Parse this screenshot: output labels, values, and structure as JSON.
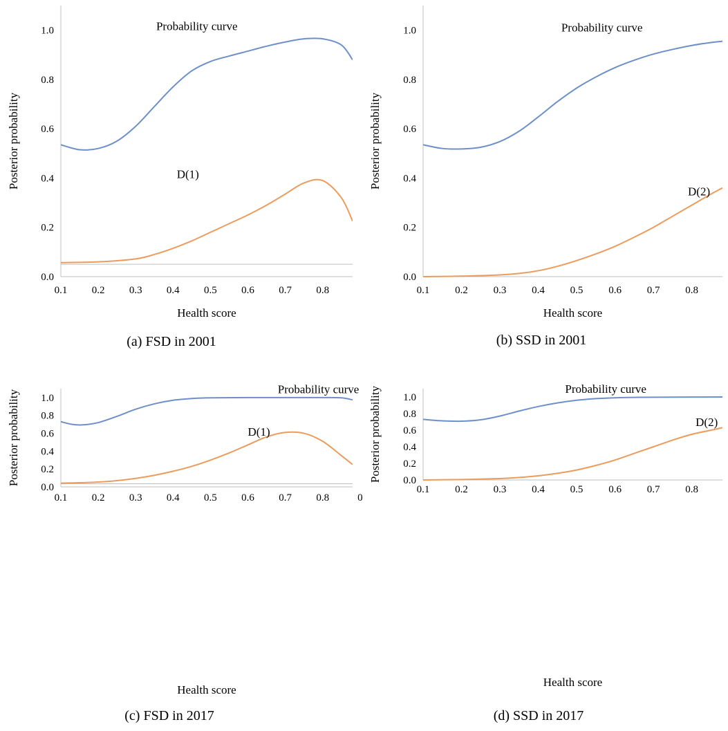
{
  "chart_data": [
    {
      "type": "line",
      "caption": "(a) FSD in 2001",
      "xlabel": "Health score",
      "ylabel": "Posterior probability",
      "xlim": [
        0.1,
        0.88
      ],
      "ylim": [
        0,
        1.1
      ],
      "xticks": [
        "0.1",
        "0.2",
        "0.3",
        "0.4",
        "0.5",
        "0.6",
        "0.7",
        "0.8"
      ],
      "yticks": [
        "0.0",
        "0.2",
        "0.4",
        "0.6",
        "0.8",
        "1.0"
      ],
      "series": [
        {
          "name": "Probability curve",
          "color": "#6d8fc9",
          "x": [
            0.1,
            0.15,
            0.2,
            0.25,
            0.3,
            0.35,
            0.4,
            0.45,
            0.5,
            0.55,
            0.6,
            0.65,
            0.7,
            0.75,
            0.8,
            0.85,
            0.88
          ],
          "y": [
            0.535,
            0.515,
            0.52,
            0.55,
            0.61,
            0.69,
            0.77,
            0.835,
            0.873,
            0.895,
            0.915,
            0.935,
            0.952,
            0.965,
            0.965,
            0.94,
            0.88
          ]
        },
        {
          "name": "D(1)",
          "color": "#ed9b5c",
          "x": [
            0.1,
            0.2,
            0.3,
            0.35,
            0.4,
            0.45,
            0.5,
            0.55,
            0.6,
            0.65,
            0.7,
            0.75,
            0.8,
            0.85,
            0.88
          ],
          "y": [
            0.057,
            0.06,
            0.072,
            0.09,
            0.115,
            0.145,
            0.18,
            0.215,
            0.25,
            0.29,
            0.335,
            0.38,
            0.39,
            0.32,
            0.225
          ]
        }
      ],
      "hline": {
        "y": 0.05,
        "color": "#bfbfbf"
      },
      "annotations": [
        {
          "text": "Probability curve",
          "x": 0.355,
          "y": 1.0
        },
        {
          "text": "D(1)",
          "x": 0.41,
          "y": 0.4
        }
      ]
    },
    {
      "type": "line",
      "caption": "(b) SSD in 2001",
      "xlabel": "Health score",
      "ylabel": "Posterior probability",
      "xlim": [
        0.1,
        0.88
      ],
      "ylim": [
        0,
        1.1
      ],
      "xticks": [
        "0.1",
        "0.2",
        "0.3",
        "0.4",
        "0.5",
        "0.6",
        "0.7",
        "0.8"
      ],
      "yticks": [
        "0.0",
        "0.2",
        "0.4",
        "0.6",
        "0.8",
        "1.0"
      ],
      "series": [
        {
          "name": "Probability curve",
          "color": "#6d8fc9",
          "x": [
            0.1,
            0.15,
            0.2,
            0.25,
            0.3,
            0.35,
            0.4,
            0.45,
            0.5,
            0.55,
            0.6,
            0.65,
            0.7,
            0.75,
            0.8,
            0.85,
            0.88
          ],
          "y": [
            0.535,
            0.52,
            0.518,
            0.525,
            0.548,
            0.59,
            0.648,
            0.71,
            0.765,
            0.81,
            0.848,
            0.878,
            0.903,
            0.922,
            0.938,
            0.95,
            0.955
          ]
        },
        {
          "name": "D(2)",
          "color": "#ed9b5c",
          "x": [
            0.1,
            0.2,
            0.3,
            0.35,
            0.4,
            0.45,
            0.5,
            0.55,
            0.6,
            0.65,
            0.7,
            0.75,
            0.8,
            0.85,
            0.88
          ],
          "y": [
            0.0,
            0.002,
            0.007,
            0.013,
            0.024,
            0.042,
            0.065,
            0.092,
            0.123,
            0.16,
            0.2,
            0.245,
            0.29,
            0.335,
            0.36
          ]
        }
      ],
      "annotations": [
        {
          "text": "Probability curve",
          "x": 0.46,
          "y": 0.995
        },
        {
          "text": "D(2)",
          "x": 0.79,
          "y": 0.33
        }
      ]
    },
    {
      "type": "line",
      "caption": "(c) FSD in 2017",
      "xlabel": "Health score",
      "ylabel": "Posterior probability",
      "xlim": [
        0.1,
        0.88
      ],
      "ylim": [
        0,
        1.1
      ],
      "xticks": [
        "0.1",
        "0.2",
        "0.3",
        "0.4",
        "0.5",
        "0.6",
        "0.7",
        "0.8",
        "0"
      ],
      "yticks": [
        "0.0",
        "0.2",
        "0.4",
        "0.6",
        "0.8",
        "1.0"
      ],
      "series": [
        {
          "name": "Probability curve",
          "color": "#6d8fc9",
          "x": [
            0.1,
            0.13,
            0.16,
            0.2,
            0.25,
            0.3,
            0.35,
            0.4,
            0.45,
            0.5,
            0.6,
            0.7,
            0.8,
            0.85,
            0.88
          ],
          "y": [
            0.73,
            0.7,
            0.695,
            0.72,
            0.79,
            0.87,
            0.93,
            0.97,
            0.99,
            0.997,
            1.0,
            1.0,
            1.0,
            0.997,
            0.975
          ]
        },
        {
          "name": "D(1)",
          "color": "#ed9b5c",
          "x": [
            0.1,
            0.15,
            0.2,
            0.25,
            0.3,
            0.35,
            0.4,
            0.45,
            0.5,
            0.55,
            0.6,
            0.65,
            0.7,
            0.75,
            0.8,
            0.85,
            0.88
          ],
          "y": [
            0.042,
            0.046,
            0.054,
            0.07,
            0.095,
            0.13,
            0.175,
            0.23,
            0.3,
            0.38,
            0.47,
            0.56,
            0.61,
            0.6,
            0.51,
            0.35,
            0.25
          ]
        }
      ],
      "hline": {
        "y": 0.035,
        "color": "#bfbfbf"
      },
      "annotations": [
        {
          "text": "Probability curve",
          "x": 0.68,
          "y": 1.05
        },
        {
          "text": "D(1)",
          "x": 0.6,
          "y": 0.575
        }
      ]
    },
    {
      "type": "line",
      "caption": "(d) SSD in 2017",
      "xlabel": "Health score",
      "ylabel": "Posterior probability",
      "xlim": [
        0.1,
        0.88
      ],
      "ylim": [
        0,
        1.1
      ],
      "xticks": [
        "0.1",
        "0.2",
        "0.3",
        "0.4",
        "0.5",
        "0.6",
        "0.7",
        "0.8",
        "0"
      ],
      "yticks": [
        "0.0",
        "0.2",
        "0.4",
        "0.6",
        "0.8",
        "1.0"
      ],
      "series": [
        {
          "name": "Probability curve",
          "color": "#6d8fc9",
          "x": [
            0.1,
            0.15,
            0.2,
            0.25,
            0.3,
            0.35,
            0.4,
            0.45,
            0.5,
            0.55,
            0.6,
            0.65,
            0.7,
            0.8,
            0.88
          ],
          "y": [
            0.73,
            0.712,
            0.708,
            0.725,
            0.77,
            0.83,
            0.885,
            0.928,
            0.96,
            0.98,
            0.99,
            0.995,
            0.997,
            0.999,
            1.0
          ]
        },
        {
          "name": "D(2)",
          "color": "#ed9b5c",
          "x": [
            0.1,
            0.2,
            0.3,
            0.35,
            0.4,
            0.45,
            0.5,
            0.55,
            0.6,
            0.65,
            0.7,
            0.75,
            0.8,
            0.85,
            0.88
          ],
          "y": [
            0.0,
            0.005,
            0.017,
            0.03,
            0.05,
            0.08,
            0.12,
            0.175,
            0.24,
            0.32,
            0.4,
            0.48,
            0.55,
            0.6,
            0.63
          ]
        }
      ],
      "annotations": [
        {
          "text": "Probability curve",
          "x": 0.47,
          "y": 1.05
        },
        {
          "text": "D(2)",
          "x": 0.81,
          "y": 0.65
        }
      ]
    }
  ]
}
